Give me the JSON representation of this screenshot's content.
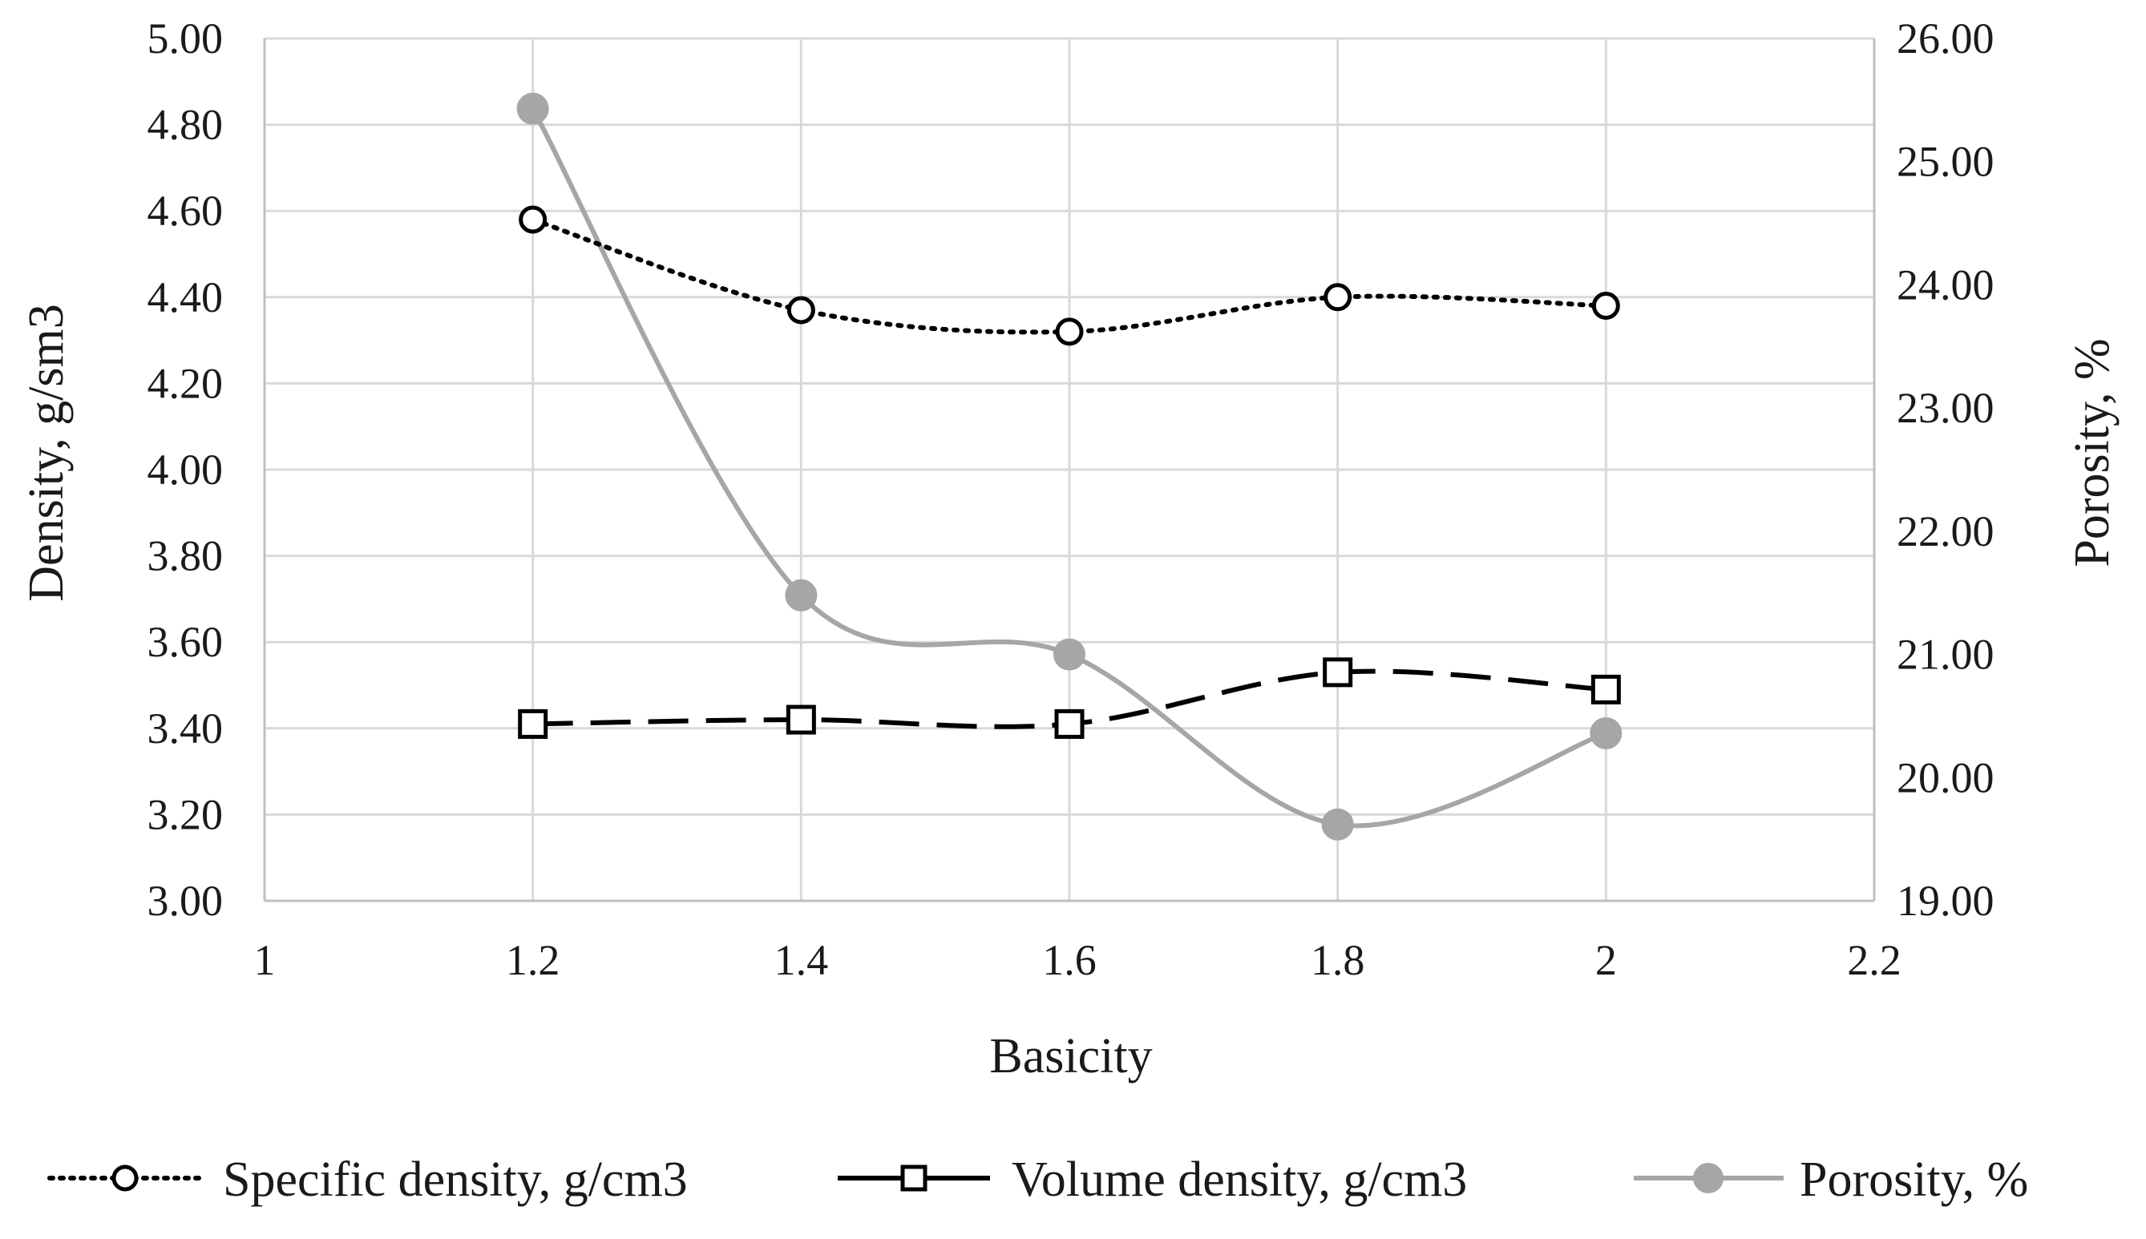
{
  "chart_data": {
    "type": "line",
    "title": "",
    "xlabel": "Basicity",
    "ylabel": "Density, g/sm3",
    "y2label": "Porosity, %",
    "xlim": [
      1,
      2.2
    ],
    "ylim": [
      3.0,
      5.0
    ],
    "y2lim": [
      19.0,
      26.0
    ],
    "x_ticks": [
      "1",
      "1.2",
      "1.4",
      "1.6",
      "1.8",
      "2",
      "2.2"
    ],
    "x_tick_values": [
      1,
      1.2,
      1.4,
      1.6,
      1.8,
      2,
      2.2
    ],
    "y_ticks": [
      "3.00",
      "3.20",
      "3.40",
      "3.60",
      "3.80",
      "4.00",
      "4.20",
      "4.40",
      "4.60",
      "4.80",
      "5.00"
    ],
    "y_tick_values": [
      3.0,
      3.2,
      3.4,
      3.6,
      3.8,
      4.0,
      4.2,
      4.4,
      4.6,
      4.8,
      5.0
    ],
    "y2_ticks": [
      "19.00",
      "20.00",
      "21.00",
      "22.00",
      "23.00",
      "24.00",
      "25.00",
      "26.00"
    ],
    "y2_tick_values": [
      19,
      20,
      21,
      22,
      23,
      24,
      25,
      26
    ],
    "grid": true,
    "legend_position": "bottom",
    "series": [
      {
        "name": "Specific density, g/cm3",
        "axis": "left",
        "style": "dotted",
        "marker": "open-circle",
        "color": "#000000",
        "x": [
          1.2,
          1.4,
          1.6,
          1.8,
          2.0
        ],
        "values": [
          4.58,
          4.37,
          4.32,
          4.4,
          4.38
        ]
      },
      {
        "name": "Volume density, g/cm3",
        "axis": "left",
        "style": "dashed",
        "marker": "open-square",
        "color": "#000000",
        "x": [
          1.2,
          1.4,
          1.6,
          1.8,
          2.0
        ],
        "values": [
          3.41,
          3.42,
          3.41,
          3.53,
          3.49
        ]
      },
      {
        "name": "Porosity, %",
        "axis": "right",
        "style": "solid",
        "marker": "filled-circle",
        "color": "#a6a6a6",
        "x": [
          1.2,
          1.4,
          1.6,
          1.8,
          2.0
        ],
        "values": [
          25.43,
          21.48,
          21.0,
          19.62,
          20.36
        ]
      }
    ]
  }
}
